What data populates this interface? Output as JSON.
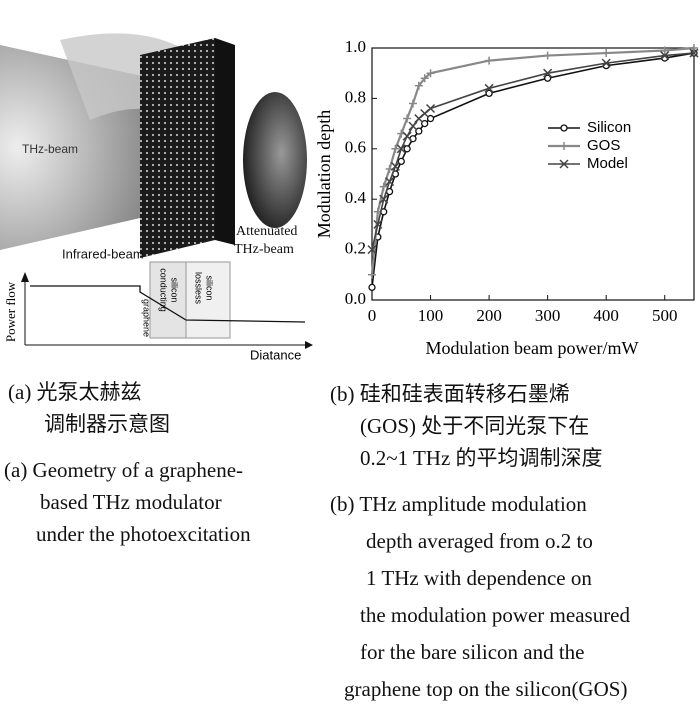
{
  "chart_data": {
    "type": "line",
    "x_label": "Modulation beam power/mW",
    "y_label": "Modulation depth",
    "x": [
      0,
      10,
      20,
      30,
      40,
      50,
      60,
      70,
      80,
      90,
      100,
      200,
      300,
      400,
      500,
      550
    ],
    "series": [
      {
        "name": "Silicon",
        "color": "#111111",
        "marker": "circle",
        "values": [
          0.05,
          0.25,
          0.35,
          0.43,
          0.5,
          0.55,
          0.6,
          0.64,
          0.67,
          0.7,
          0.72,
          0.82,
          0.88,
          0.93,
          0.96,
          0.98
        ]
      },
      {
        "name": "GOS",
        "color": "#888888",
        "marker": "plus",
        "values": [
          0.1,
          0.35,
          0.45,
          0.52,
          0.6,
          0.66,
          0.72,
          0.78,
          0.85,
          0.88,
          0.9,
          0.95,
          0.97,
          0.98,
          0.99,
          1.0
        ]
      },
      {
        "name": "Model",
        "color": "#444444",
        "marker": "x",
        "values": [
          0.2,
          0.3,
          0.4,
          0.47,
          0.53,
          0.6,
          0.65,
          0.69,
          0.72,
          0.74,
          0.76,
          0.84,
          0.9,
          0.94,
          0.97,
          0.98
        ]
      }
    ],
    "xlim": [
      0,
      550
    ],
    "xticks": [
      0,
      100,
      200,
      300,
      400,
      500
    ],
    "ylim": [
      0,
      1
    ],
    "yticks": [
      {
        "value": 0,
        "label": "0.0"
      },
      0.2,
      0.4,
      0.6,
      0.8,
      {
        "value": 1,
        "label": "1.0"
      }
    ],
    "grid": false,
    "legend": "right"
  },
  "panel_a": {
    "thz_beam": "THz-beam",
    "infrared_beam": "Infrared-beam",
    "attenuated_thz_beam": [
      "Attenuated",
      "THz-beam"
    ],
    "power_flow": "Power flow",
    "graphene": "graphene",
    "conducting_silicon": [
      "conducting",
      "silicon"
    ],
    "lossless_silicon": [
      "lossless",
      "silicon"
    ],
    "distance": "Diatance"
  },
  "captions": {
    "a_zh": [
      "(a) 光泵太赫兹",
      "调制器示意图"
    ],
    "a_en": [
      "(a) Geometry of a graphene-",
      "based THz modulator",
      "under the photoexcitation"
    ],
    "b_zh": [
      "(b) 硅和硅表面转移石墨烯",
      "(GOS) 处于不同光泵下在",
      "0.2~1 THz 的平均调制深度"
    ],
    "b_en": [
      "(b)  THz amplitude modulation",
      "depth averaged from o.2 to",
      "1 THz with dependence on",
      "the modulation power measured",
      "for the bare silicon and the",
      "graphene top on the silicon(GOS)"
    ]
  }
}
